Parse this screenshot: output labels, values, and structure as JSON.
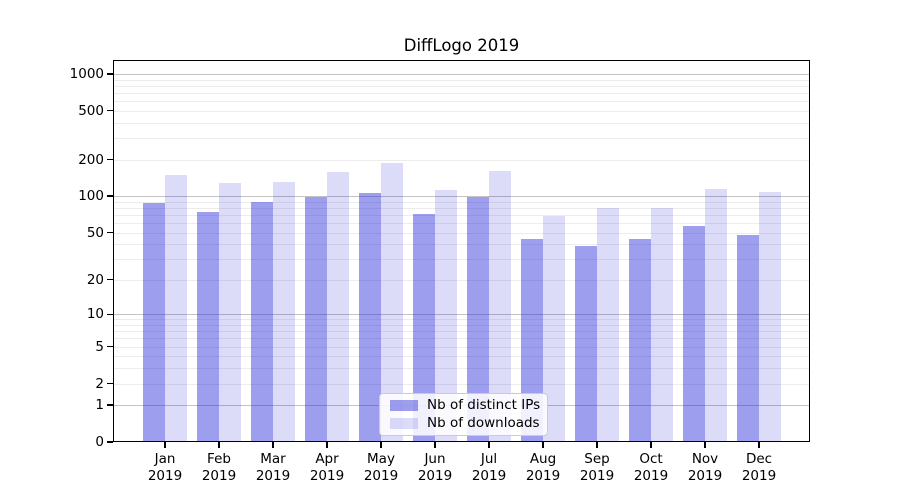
{
  "title": "DiffLogo 2019",
  "chart_data": {
    "type": "bar",
    "title": "DiffLogo 2019",
    "categories": [
      "Jan 2019",
      "Feb 2019",
      "Mar 2019",
      "Apr 2019",
      "May 2019",
      "Jun 2019",
      "Jul 2019",
      "Aug 2019",
      "Sep 2019",
      "Oct 2019",
      "Nov 2019",
      "Dec 2019"
    ],
    "months": [
      "Jan",
      "Feb",
      "Mar",
      "Apr",
      "May",
      "Jun",
      "Jul",
      "Aug",
      "Sep",
      "Oct",
      "Nov",
      "Dec"
    ],
    "year": "2019",
    "series": [
      {
        "name": "Nb of distinct IPs",
        "color": "rgba(40,40,220,0.45)",
        "values": [
          88,
          74,
          89,
          98,
          106,
          71,
          98,
          44,
          39,
          44,
          57,
          48
        ]
      },
      {
        "name": "Nb of downloads",
        "color": "rgba(40,40,220,0.16)",
        "values": [
          150,
          129,
          131,
          158,
          188,
          113,
          162,
          69,
          80,
          80,
          115,
          109
        ]
      }
    ],
    "xlabel": "",
    "ylabel": "",
    "y_axis": {
      "scale": "log10(value+1)",
      "ylim": [
        0,
        1300
      ],
      "ticks": [
        0,
        1,
        2,
        5,
        10,
        20,
        50,
        100,
        200,
        500,
        1000
      ],
      "major_gridlines": [
        1,
        10,
        100,
        1000
      ],
      "grid": true
    },
    "legend": {
      "position": "lower center",
      "entries": [
        "Nb of distinct IPs",
        "Nb of downloads"
      ]
    }
  },
  "colors": {
    "background": "#ffffff",
    "spine": "#000000",
    "major_grid": "#c3c3c3",
    "minor_grid": "#ececec",
    "legend_border": "#cccccc",
    "text": "#000000"
  }
}
